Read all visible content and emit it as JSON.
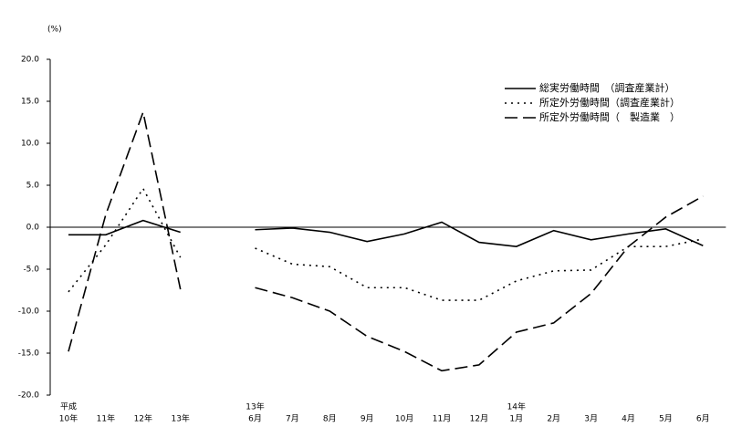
{
  "chart_data": {
    "type": "line",
    "unit_label": "(%)",
    "categories": [
      "10年",
      "11年",
      "12年",
      "13年",
      null,
      "6月",
      "7月",
      "8月",
      "9月",
      "10月",
      "11月",
      "12月",
      "1月",
      "2月",
      "3月",
      "4月",
      "5月",
      "6月"
    ],
    "category_groups": [
      {
        "label": "平成",
        "index": 0
      },
      {
        "label": "13年",
        "index": 5
      },
      {
        "label": "14年",
        "index": 12
      }
    ],
    "ylim": [
      -20,
      20
    ],
    "yticks": [
      {
        "value": -20,
        "label": "-20.0"
      },
      {
        "value": -15,
        "label": "-15.0"
      },
      {
        "value": -10,
        "label": "-10.0"
      },
      {
        "value": -5,
        "label": "-5.0"
      },
      {
        "value": 0,
        "label": "0.0"
      },
      {
        "value": 5,
        "label": "5.0"
      },
      {
        "value": 10,
        "label": "10.0"
      },
      {
        "value": 15,
        "label": "15.0"
      },
      {
        "value": 20,
        "label": "20.0"
      }
    ],
    "legend": "top-right",
    "series": [
      {
        "name": "総実労働時間　（調査産業計）",
        "color": "#000000",
        "dash": "solid",
        "values": [
          -0.9,
          -0.9,
          0.8,
          -0.6,
          null,
          -0.3,
          -0.1,
          -0.6,
          -1.7,
          -0.8,
          0.6,
          -1.8,
          -2.3,
          -0.4,
          -1.5,
          -0.8,
          -0.2,
          -2.2
        ]
      },
      {
        "name": "所定外労働時間（調査産業計）",
        "color": "#000000",
        "dash": "dotted",
        "values": [
          -7.7,
          -2.1,
          4.6,
          -3.6,
          null,
          -2.5,
          -4.4,
          -4.7,
          -7.2,
          -7.2,
          -8.7,
          -8.7,
          -6.4,
          -5.2,
          -5.1,
          -2.3,
          -2.3,
          -1.4
        ]
      },
      {
        "name": "所定外労働時間（　製造業　）",
        "color": "#000000",
        "dash": "dashed",
        "values": [
          -14.8,
          1.5,
          13.7,
          -7.4,
          null,
          -7.2,
          -8.4,
          -10.0,
          -13.0,
          -14.8,
          -17.1,
          -16.4,
          -12.5,
          -11.4,
          -7.9,
          -2.3,
          1.2,
          3.7
        ]
      }
    ]
  }
}
